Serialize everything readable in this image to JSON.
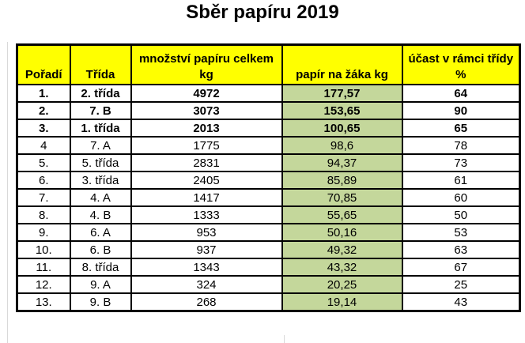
{
  "title": "Sběr papíru 2019",
  "colors": {
    "header_bg": "#FFFF00",
    "highlight_column_bg": "#C4D79B",
    "border": "#000000",
    "gridline": "#d9d9d9"
  },
  "table": {
    "headers": [
      {
        "lines": [
          "Pořadí"
        ]
      },
      {
        "lines": [
          "Třída"
        ]
      },
      {
        "lines": [
          "množství papíru celkem",
          "kg"
        ]
      },
      {
        "lines": [
          "papír na žáka kg"
        ]
      },
      {
        "lines": [
          "účast v rámci třídy",
          "%"
        ]
      }
    ],
    "rows": [
      {
        "rank": "1.",
        "class": "2. třída",
        "total_kg": "4972",
        "per_pupil_kg": "177,57",
        "participation_pct": "64",
        "bold": true
      },
      {
        "rank": "2.",
        "class": "7. B",
        "total_kg": "3073",
        "per_pupil_kg": "153,65",
        "participation_pct": "90",
        "bold": true
      },
      {
        "rank": "3.",
        "class": "1. třída",
        "total_kg": "2013",
        "per_pupil_kg": "100,65",
        "participation_pct": "65",
        "bold": true
      },
      {
        "rank": "4",
        "class": "7. A",
        "total_kg": "1775",
        "per_pupil_kg": "98,6",
        "participation_pct": "78",
        "bold": false
      },
      {
        "rank": "5.",
        "class": "5. třída",
        "total_kg": "2831",
        "per_pupil_kg": "94,37",
        "participation_pct": "73",
        "bold": false
      },
      {
        "rank": "6.",
        "class": "3. třída",
        "total_kg": "2405",
        "per_pupil_kg": "85,89",
        "participation_pct": "61",
        "bold": false
      },
      {
        "rank": "7.",
        "class": "4. A",
        "total_kg": "1417",
        "per_pupil_kg": "70,85",
        "participation_pct": "60",
        "bold": false
      },
      {
        "rank": "8.",
        "class": "4. B",
        "total_kg": "1333",
        "per_pupil_kg": "55,65",
        "participation_pct": "50",
        "bold": false
      },
      {
        "rank": "9.",
        "class": "6. A",
        "total_kg": "953",
        "per_pupil_kg": "50,16",
        "participation_pct": "53",
        "bold": false
      },
      {
        "rank": "10.",
        "class": "6. B",
        "total_kg": "937",
        "per_pupil_kg": "49,32",
        "participation_pct": "63",
        "bold": false
      },
      {
        "rank": "11.",
        "class": "8. třída",
        "total_kg": "1343",
        "per_pupil_kg": "43,32",
        "participation_pct": "67",
        "bold": false
      },
      {
        "rank": "12.",
        "class": "9. A",
        "total_kg": "324",
        "per_pupil_kg": "20,25",
        "participation_pct": "25",
        "bold": false
      },
      {
        "rank": "13.",
        "class": "9. B",
        "total_kg": "268",
        "per_pupil_kg": "19,14",
        "participation_pct": "43",
        "bold": false
      }
    ]
  },
  "chart_data": {
    "type": "table",
    "title": "Sběr papíru 2019",
    "columns": [
      "Pořadí",
      "Třída",
      "množství papíru celkem kg",
      "papír na žáka kg",
      "účast v rámci třídy %"
    ],
    "rows": [
      [
        "1.",
        "2. třída",
        4972,
        177.57,
        64
      ],
      [
        "2.",
        "7. B",
        3073,
        153.65,
        90
      ],
      [
        "3.",
        "1. třída",
        2013,
        100.65,
        65
      ],
      [
        "4",
        "7. A",
        1775,
        98.6,
        78
      ],
      [
        "5.",
        "5. třída",
        2831,
        94.37,
        73
      ],
      [
        "6.",
        "3. třída",
        2405,
        85.89,
        61
      ],
      [
        "7.",
        "4. A",
        1417,
        70.85,
        60
      ],
      [
        "8.",
        "4. B",
        1333,
        55.65,
        50
      ],
      [
        "9.",
        "6. A",
        953,
        50.16,
        53
      ],
      [
        "10.",
        "6. B",
        937,
        49.32,
        63
      ],
      [
        "11.",
        "8. třída",
        1343,
        43.32,
        67
      ],
      [
        "12.",
        "9. A",
        324,
        20.25,
        25
      ],
      [
        "13.",
        "9. B",
        268,
        19.14,
        43
      ]
    ],
    "layout_hints": {
      "header_fill": "#FFFF00",
      "highlighted_column": "papír na žáka kg",
      "highlighted_column_fill": "#C4D79B",
      "bold_rows": [
        0,
        1,
        2
      ],
      "decimal_separator": ","
    }
  }
}
